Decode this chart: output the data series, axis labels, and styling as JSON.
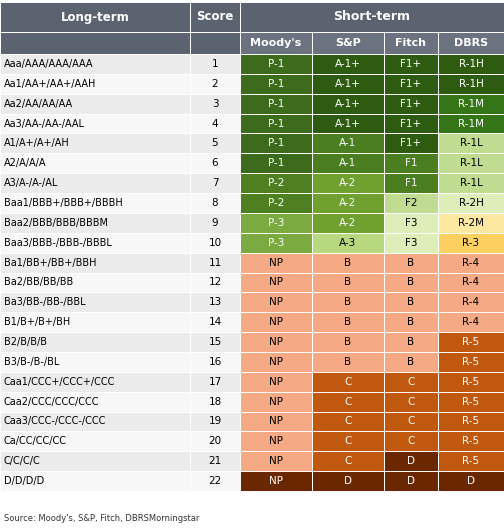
{
  "source": "Source: Moody's, S&P, Fitch, DBRSMorningstar",
  "header_bg": "#5c6370",
  "subheader_bg": "#6b7280",
  "long_term_labels": [
    "Aaa/AAA/AAA/AAA",
    "Aa1/AA+/AA+/AAH",
    "Aa2/AA/AA/AA",
    "Aa3/AA-/AA-/AAL",
    "A1/A+/A+/AH",
    "A2/A/A/A",
    "A3/A-/A-/AL",
    "Baa1/BBB+/BBB+/BBBH",
    "Baa2/BBB/BBB/BBBM",
    "Baa3/BBB-/BBB-/BBBL",
    "Ba1/BB+/BB+/BBH",
    "Ba2/BB/BB/BB",
    "Ba3/BB-/BB-/BBL",
    "B1/B+/B+/BH",
    "B2/B/B/B",
    "B3/B-/B-/BL",
    "Caa1/CCC+/CCC+/CCC",
    "Caa2/CCC/CCC/CCC",
    "Caa3/CCC-/CCC-/CCC",
    "Ca/CC/CC/CC",
    "C/C/C/C",
    "D/D/D/D"
  ],
  "scores": [
    1,
    2,
    3,
    4,
    5,
    6,
    7,
    8,
    9,
    10,
    11,
    12,
    13,
    14,
    15,
    16,
    17,
    18,
    19,
    20,
    21,
    22
  ],
  "moodys": [
    "P-1",
    "P-1",
    "P-1",
    "P-1",
    "P-1",
    "P-1",
    "P-2",
    "P-2",
    "P-3",
    "P-3",
    "NP",
    "NP",
    "NP",
    "NP",
    "NP",
    "NP",
    "NP",
    "NP",
    "NP",
    "NP",
    "NP",
    "NP"
  ],
  "sp": [
    "A-1+",
    "A-1+",
    "A-1+",
    "A-1+",
    "A-1",
    "A-1",
    "A-2",
    "A-2",
    "A-2",
    "A-3",
    "B",
    "B",
    "B",
    "B",
    "B",
    "B",
    "C",
    "C",
    "C",
    "C",
    "C",
    "D"
  ],
  "fitch": [
    "F1+",
    "F1+",
    "F1+",
    "F1+",
    "F1+",
    "F1",
    "F1",
    "F2",
    "F3",
    "F3",
    "B",
    "B",
    "B",
    "B",
    "B",
    "B",
    "C",
    "C",
    "C",
    "C",
    "D",
    "D"
  ],
  "dbrs": [
    "R-1H",
    "R-1H",
    "R-1M",
    "R-1M",
    "R-1L",
    "R-1L",
    "R-1L",
    "R-2H",
    "R-2M",
    "R-3",
    "R-4",
    "R-4",
    "R-4",
    "R-4",
    "R-5",
    "R-5",
    "R-5",
    "R-5",
    "R-5",
    "R-5",
    "R-5",
    "D"
  ],
  "moodys_colors": [
    "#3d6b1c",
    "#3d6b1c",
    "#3d6b1c",
    "#3d6b1c",
    "#3d6b1c",
    "#3d6b1c",
    "#4e7f20",
    "#4e7f20",
    "#7aaa40",
    "#7aaa40",
    "#f5aa85",
    "#f5aa85",
    "#f5aa85",
    "#f5aa85",
    "#f5aa85",
    "#f5aa85",
    "#f5aa85",
    "#f5aa85",
    "#f5aa85",
    "#f5aa85",
    "#f5aa85",
    "#6b2800"
  ],
  "sp_colors": [
    "#2d5c10",
    "#2d5c10",
    "#2d5c10",
    "#2d5c10",
    "#4a7e20",
    "#4a7e20",
    "#6fa030",
    "#6fa030",
    "#6fa030",
    "#b8d880",
    "#f5aa85",
    "#f5aa85",
    "#f5aa85",
    "#f5aa85",
    "#f5aa85",
    "#f5aa85",
    "#c05810",
    "#c05810",
    "#c05810",
    "#c05810",
    "#c05810",
    "#6b2800"
  ],
  "fitch_colors": [
    "#2d5c10",
    "#2d5c10",
    "#2d5c10",
    "#2d5c10",
    "#2d5c10",
    "#4a7e20",
    "#4a7e20",
    "#c0dc90",
    "#ddeeb8",
    "#ddeeb8",
    "#f5aa85",
    "#f5aa85",
    "#f5aa85",
    "#f5aa85",
    "#f5aa85",
    "#f5aa85",
    "#c05810",
    "#c05810",
    "#c05810",
    "#c05810",
    "#6b2800",
    "#6b2800"
  ],
  "dbrs_colors": [
    "#2d5c10",
    "#2d5c10",
    "#347518",
    "#347518",
    "#c0dc90",
    "#c0dc90",
    "#c0dc90",
    "#ddeeb8",
    "#fce8a0",
    "#fcd060",
    "#f5aa85",
    "#f5aa85",
    "#f5aa85",
    "#f5aa85",
    "#c05810",
    "#c05810",
    "#c05810",
    "#c05810",
    "#c05810",
    "#c05810",
    "#c05810",
    "#6b2800"
  ],
  "moodys_text": [
    "white",
    "white",
    "white",
    "white",
    "white",
    "white",
    "white",
    "white",
    "white",
    "white",
    "black",
    "black",
    "black",
    "black",
    "black",
    "black",
    "black",
    "black",
    "black",
    "black",
    "black",
    "white"
  ],
  "sp_text": [
    "white",
    "white",
    "white",
    "white",
    "white",
    "white",
    "white",
    "white",
    "white",
    "black",
    "black",
    "black",
    "black",
    "black",
    "black",
    "black",
    "white",
    "white",
    "white",
    "white",
    "white",
    "white"
  ],
  "fitch_text": [
    "white",
    "white",
    "white",
    "white",
    "white",
    "white",
    "white",
    "black",
    "black",
    "black",
    "black",
    "black",
    "black",
    "black",
    "black",
    "black",
    "white",
    "white",
    "white",
    "white",
    "white",
    "white"
  ],
  "dbrs_text": [
    "white",
    "white",
    "white",
    "white",
    "black",
    "black",
    "black",
    "black",
    "black",
    "black",
    "black",
    "black",
    "black",
    "black",
    "white",
    "white",
    "white",
    "white",
    "white",
    "white",
    "white",
    "white"
  ],
  "row_bg_even": "#ebebeb",
  "row_bg_odd": "#f7f7f7"
}
